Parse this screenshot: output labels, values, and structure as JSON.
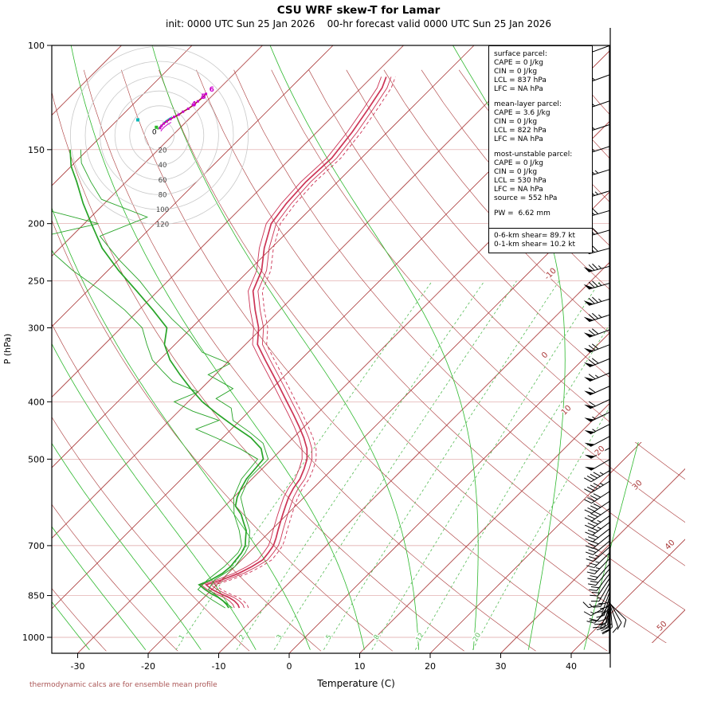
{
  "title": "CSU WRF skew-T for Lamar",
  "subtitle": "init: 0000 UTC Sun 25 Jan 2026    00-hr forecast valid 0000 UTC Sun 25 Jan 2026",
  "footer": "thermodynamic calcs are for ensemble mean profile",
  "info_box": {
    "sections": [
      {
        "title": "surface parcel:",
        "lines": [
          "CAPE = 0 J/kg",
          "CIN = 0 J/kg",
          "LCL = 837 hPa",
          "LFC = NA hPa"
        ]
      },
      {
        "title": "mean-layer parcel:",
        "lines": [
          "CAPE = 3.6 J/kg",
          "CIN = 0 J/kg",
          "LCL = 822 hPa",
          "LFC = NA hPa"
        ]
      },
      {
        "title": "most-unstable parcel:",
        "lines": [
          "CAPE = 0 J/kg",
          "CIN = 0 J/kg",
          "LCL = 530 hPa",
          "LFC = NA hPa",
          "source = 552 hPa"
        ]
      },
      {
        "title": "",
        "lines": [
          "PW =  6.62 mm"
        ]
      }
    ],
    "shear_lines": [
      "0-6-km shear= 89.7 kt",
      "0-1-km shear= 10.2 kt"
    ]
  },
  "chart_data": {
    "type": "line",
    "variant": "skew-t-log-p",
    "title": "CSU WRF skew-T for Lamar",
    "xlabel": "Temperature (C)",
    "ylabel": "P (hPa)",
    "x_ticks": [
      -30,
      -20,
      -10,
      0,
      10,
      20,
      30,
      40
    ],
    "pressure_ticks": [
      100,
      150,
      200,
      250,
      300,
      400,
      500,
      700,
      850,
      1000
    ],
    "isobar_lines": [
      150,
      200,
      250,
      300,
      400,
      500,
      700,
      850,
      1000
    ],
    "isotherm_range": [
      -120,
      50
    ],
    "isotherm_step": 10,
    "isotherm_labels": [
      -10,
      0,
      10,
      20,
      30,
      40,
      50
    ],
    "dry_adiabats_theta": [
      -30,
      -20,
      -10,
      0,
      10,
      20,
      30,
      40,
      50,
      60,
      70,
      80,
      90,
      100,
      110,
      120,
      130,
      140,
      150,
      160,
      170,
      180
    ],
    "moist_adiabats_thetaw": [
      -32,
      -24,
      -16,
      -8,
      0,
      8,
      16,
      24,
      32,
      40
    ],
    "mixing_ratio_lines": [
      1,
      2,
      3,
      5,
      8,
      12,
      20
    ],
    "temperature_profile": {
      "pressure": [
        892,
        880,
        868,
        856,
        844,
        830,
        815,
        800,
        780,
        760,
        740,
        720,
        700,
        680,
        660,
        640,
        620,
        600,
        580,
        560,
        540,
        520,
        500,
        480,
        460,
        440,
        420,
        400,
        380,
        360,
        340,
        320,
        300,
        280,
        260,
        240,
        220,
        200,
        185,
        170,
        155,
        140,
        128,
        118,
        113
      ],
      "temp": [
        -13.5,
        -14.2,
        -15.2,
        -16.5,
        -18.2,
        -20,
        -21.5,
        -20,
        -18.5,
        -17.6,
        -17,
        -17.2,
        -17.5,
        -18.2,
        -19,
        -19.8,
        -20.6,
        -21.4,
        -22.2,
        -22.8,
        -23.2,
        -24,
        -25,
        -26.5,
        -28.5,
        -30.8,
        -33.3,
        -36,
        -38.8,
        -41.8,
        -45,
        -48.3,
        -50.5,
        -53.5,
        -56.5,
        -58.2,
        -61,
        -63.5,
        -64.2,
        -64.5,
        -64.2,
        -65,
        -66,
        -67,
        -68
      ]
    },
    "ensemble_temp_offsets": [
      -0.7,
      0.7
    ],
    "parcel_trace_offset": 1.3,
    "dewpoint_profile": {
      "pressure": [
        892,
        880,
        868,
        856,
        844,
        830,
        815,
        800,
        780,
        760,
        740,
        720,
        700,
        680,
        660,
        640,
        620,
        600,
        580,
        560,
        540,
        520,
        500,
        480,
        460,
        440,
        420,
        400,
        380,
        360,
        340,
        320,
        300,
        280,
        260,
        240,
        220,
        200,
        185,
        170,
        160,
        150
      ],
      "temp": [
        -15,
        -15.8,
        -16.8,
        -18,
        -19.5,
        -21,
        -22.5,
        -21.5,
        -20.8,
        -20.6,
        -20.8,
        -21,
        -21.5,
        -22.5,
        -23.5,
        -25,
        -26.5,
        -28.5,
        -29.5,
        -30.2,
        -30.8,
        -31,
        -31.2,
        -33,
        -36,
        -40,
        -44,
        -48,
        -51.5,
        -55,
        -58.5,
        -61.5,
        -63.5,
        -68,
        -73,
        -78.5,
        -84,
        -89,
        -93,
        -97,
        -100,
        -102.5
      ]
    },
    "dewpoint_members": [
      [
        [
          892,
          -14.5
        ],
        [
          860,
          -17.5
        ],
        [
          830,
          -20.5
        ],
        [
          800,
          -21
        ],
        [
          760,
          -20
        ],
        [
          720,
          -20.5
        ],
        [
          700,
          -21
        ],
        [
          660,
          -23
        ],
        [
          620,
          -26
        ],
        [
          580,
          -29
        ],
        [
          540,
          -30.5
        ],
        [
          500,
          -30.5
        ],
        [
          470,
          -33.5
        ],
        [
          450,
          -37
        ],
        [
          430,
          -41
        ],
        [
          410,
          -43
        ],
        [
          395,
          -46.5
        ],
        [
          380,
          -45.5
        ],
        [
          360,
          -51
        ],
        [
          345,
          -49.5
        ],
        [
          330,
          -55
        ],
        [
          310,
          -59
        ],
        [
          290,
          -64
        ],
        [
          270,
          -69
        ],
        [
          250,
          -74
        ],
        [
          230,
          -80
        ],
        [
          210,
          -86
        ],
        [
          195,
          -82
        ],
        [
          182,
          -91
        ],
        [
          170,
          -95
        ],
        [
          158,
          -99
        ],
        [
          150,
          -101
        ]
      ],
      [
        [
          892,
          -15.5
        ],
        [
          860,
          -19
        ],
        [
          830,
          -22
        ],
        [
          800,
          -22
        ],
        [
          760,
          -21.5
        ],
        [
          720,
          -21.5
        ],
        [
          700,
          -22
        ],
        [
          660,
          -24.5
        ],
        [
          620,
          -27.5
        ],
        [
          580,
          -30
        ],
        [
          540,
          -31.5
        ],
        [
          500,
          -32
        ],
        [
          480,
          -36
        ],
        [
          460,
          -41
        ],
        [
          445,
          -45
        ],
        [
          430,
          -43
        ],
        [
          415,
          -48
        ],
        [
          400,
          -52
        ],
        [
          385,
          -50
        ],
        [
          370,
          -55
        ],
        [
          355,
          -58
        ],
        [
          340,
          -61
        ],
        [
          320,
          -64
        ],
        [
          300,
          -67
        ],
        [
          280,
          -72
        ],
        [
          260,
          -78
        ],
        [
          240,
          -85
        ],
        [
          225,
          -90
        ],
        [
          210,
          -94
        ],
        [
          200,
          -88
        ],
        [
          190,
          -97
        ],
        [
          178,
          -101
        ],
        [
          165,
          -105
        ],
        [
          155,
          -107
        ]
      ]
    ],
    "winds": [
      [
        100,
        250,
        52
      ],
      [
        112,
        250,
        55
      ],
      [
        124,
        251,
        58
      ],
      [
        136,
        252,
        60
      ],
      [
        148,
        252,
        62
      ],
      [
        162,
        253,
        64
      ],
      [
        176,
        253,
        66
      ],
      [
        190,
        254,
        68
      ],
      [
        205,
        254,
        70
      ],
      [
        220,
        255,
        72
      ],
      [
        236,
        255,
        74
      ],
      [
        252,
        254,
        76
      ],
      [
        268,
        253,
        75
      ],
      [
        285,
        252,
        74
      ],
      [
        302,
        250,
        72
      ],
      [
        320,
        249,
        70
      ],
      [
        338,
        248,
        68
      ],
      [
        357,
        247,
        65
      ],
      [
        376,
        246,
        62
      ],
      [
        396,
        245,
        60
      ],
      [
        416,
        244,
        57
      ],
      [
        436,
        243,
        55
      ],
      [
        457,
        242,
        52
      ],
      [
        478,
        241,
        50
      ],
      [
        500,
        240,
        48
      ],
      [
        522,
        239,
        46
      ],
      [
        544,
        238,
        44
      ],
      [
        566,
        237,
        42
      ],
      [
        588,
        236,
        40
      ],
      [
        605,
        235,
        38
      ],
      [
        622,
        234,
        36
      ],
      [
        638,
        233,
        34
      ],
      [
        654,
        232,
        32
      ],
      [
        670,
        231,
        31
      ],
      [
        686,
        230,
        29
      ],
      [
        702,
        228,
        27
      ],
      [
        718,
        226,
        26
      ],
      [
        734,
        224,
        24
      ],
      [
        750,
        222,
        22
      ],
      [
        764,
        220,
        21
      ],
      [
        778,
        217,
        19
      ],
      [
        792,
        214,
        18
      ],
      [
        806,
        210,
        16
      ],
      [
        820,
        205,
        15
      ],
      [
        833,
        200,
        14
      ],
      [
        845,
        196,
        13
      ],
      [
        856,
        192,
        12
      ],
      [
        866,
        189,
        11
      ],
      [
        875,
        187,
        10
      ],
      [
        883,
        185,
        9
      ],
      [
        889,
        183,
        9
      ],
      [
        892,
        182,
        8
      ]
    ],
    "wind_members": [
      [
        884,
        160,
        12
      ],
      [
        888,
        205,
        18
      ],
      [
        880,
        240,
        14
      ],
      [
        876,
        150,
        9
      ],
      [
        890,
        225,
        20
      ],
      [
        871,
        255,
        16
      ],
      [
        882,
        175,
        22
      ],
      [
        878,
        135,
        10
      ],
      [
        886,
        195,
        15
      ],
      [
        874,
        215,
        12
      ]
    ],
    "hodograph": {
      "ring_step_kt": 20,
      "ring_labels": [
        20,
        40,
        60,
        80,
        100,
        120
      ],
      "trace": [
        {
          "km": 0,
          "u": 1,
          "v": 10
        },
        {
          "km": 0.5,
          "u": 3,
          "v": 13
        },
        {
          "km": 1,
          "u": 6,
          "v": 16
        },
        {
          "km": 1.5,
          "u": 10,
          "v": 19
        },
        {
          "km": 2,
          "u": 15,
          "v": 22
        },
        {
          "km": 2.5,
          "u": 20,
          "v": 25
        },
        {
          "km": 3,
          "u": 26,
          "v": 28
        },
        {
          "km": 3.5,
          "u": 32,
          "v": 32
        },
        {
          "km": 4,
          "u": 39,
          "v": 36
        },
        {
          "km": 4.5,
          "u": 46,
          "v": 41
        },
        {
          "km": 5,
          "u": 52,
          "v": 46
        },
        {
          "km": 5.5,
          "u": 58,
          "v": 51
        },
        {
          "km": 6,
          "u": 63,
          "v": 56
        }
      ],
      "km_label_values": [
        0,
        4,
        5,
        6
      ],
      "member_offsets": [
        {
          "du": 2,
          "dv": -3,
          "color": "#00b7b7"
        },
        {
          "du": -3,
          "dv": 2,
          "color": "#2db82d"
        },
        {
          "du": 1,
          "dv": 4,
          "color": "#cc00cc"
        }
      ],
      "markers": [
        {
          "u": -29,
          "v": 21,
          "color": "#00b7b7"
        },
        {
          "u": -4,
          "v": 11,
          "color": "#2db82d"
        }
      ]
    },
    "colors": {
      "isotherm": "#aa3939",
      "isobar": "#dda0a0",
      "dry_adiabat": "#aa3939",
      "moist_adiabat": "#2db82d",
      "mixing_ratio": "#55bb55",
      "temperature": "#cc3355",
      "dewpoint": "#28a428",
      "parcel": "#cc3355",
      "wind": "#000000",
      "hodo_trace": "#992222",
      "hodo_marker": "#cc00cc",
      "axis": "#000000",
      "footer": "#aa5555"
    }
  }
}
